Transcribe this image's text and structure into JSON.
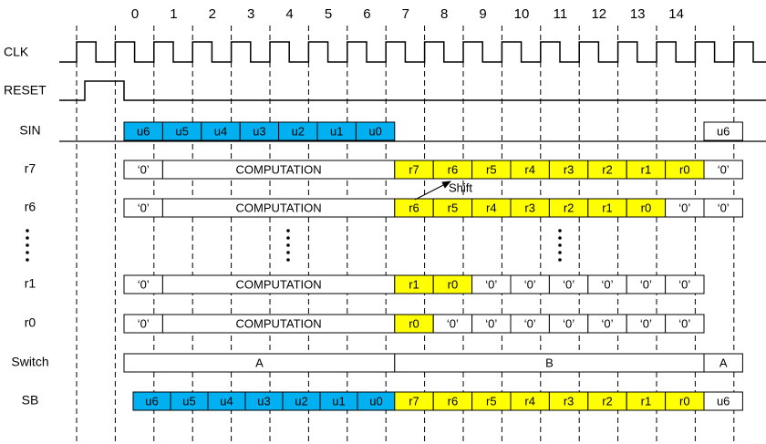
{
  "cycles": [
    "0",
    "1",
    "2",
    "3",
    "4",
    "5",
    "6",
    "7",
    "8",
    "9",
    "10",
    "11",
    "12",
    "13",
    "14"
  ],
  "clock": {
    "label": "CLK"
  },
  "reset": {
    "label": "RESET"
  },
  "rows": [
    {
      "label": "SIN",
      "cells": [
        {
          "text": "u6",
          "color": "#00b0f0"
        },
        {
          "text": "u5",
          "color": "#00b0f0"
        },
        {
          "text": "u4",
          "color": "#00b0f0"
        },
        {
          "text": "u3",
          "color": "#00b0f0"
        },
        {
          "text": "u2",
          "color": "#00b0f0"
        },
        {
          "text": "u1",
          "color": "#00b0f0"
        },
        {
          "text": "u0",
          "color": "#00b0f0"
        },
        {
          "text": "u6",
          "color": "#ffffff"
        }
      ]
    },
    {
      "label": "r7",
      "cells": [
        {
          "text": "‘0’",
          "color": "#ffffff"
        },
        {
          "text": "COMPUTATION",
          "color": "#ffffff"
        },
        {
          "text": "r7",
          "color": "#ffff00"
        },
        {
          "text": "r6",
          "color": "#ffff00"
        },
        {
          "text": "r5",
          "color": "#ffff00"
        },
        {
          "text": "r4",
          "color": "#ffff00"
        },
        {
          "text": "r3",
          "color": "#ffff00"
        },
        {
          "text": "r2",
          "color": "#ffff00"
        },
        {
          "text": "r1",
          "color": "#ffff00"
        },
        {
          "text": "r0",
          "color": "#ffff00"
        },
        {
          "text": "‘0’",
          "color": "#ffffff"
        }
      ]
    },
    {
      "label": "r6",
      "cells": [
        {
          "text": "‘0’",
          "color": "#ffffff"
        },
        {
          "text": "COMPUTATION",
          "color": "#ffffff"
        },
        {
          "text": "r6",
          "color": "#ffff00"
        },
        {
          "text": "r5",
          "color": "#ffff00"
        },
        {
          "text": "r4",
          "color": "#ffff00"
        },
        {
          "text": "r3",
          "color": "#ffff00"
        },
        {
          "text": "r2",
          "color": "#ffff00"
        },
        {
          "text": "r1",
          "color": "#ffff00"
        },
        {
          "text": "r0",
          "color": "#ffff00"
        },
        {
          "text": "‘0’",
          "color": "#ffffff"
        },
        {
          "text": "‘0’",
          "color": "#ffffff"
        }
      ]
    },
    {
      "label": "r1",
      "cells": [
        {
          "text": "‘0’",
          "color": "#ffffff"
        },
        {
          "text": "COMPUTATION",
          "color": "#ffffff"
        },
        {
          "text": "r1",
          "color": "#ffff00"
        },
        {
          "text": "r0",
          "color": "#ffff00"
        },
        {
          "text": "‘0’",
          "color": "#ffffff"
        },
        {
          "text": "‘0’",
          "color": "#ffffff"
        },
        {
          "text": "‘0’",
          "color": "#ffffff"
        },
        {
          "text": "‘0’",
          "color": "#ffffff"
        },
        {
          "text": "‘0’",
          "color": "#ffffff"
        },
        {
          "text": "‘0’",
          "color": "#ffffff"
        }
      ]
    },
    {
      "label": "r0",
      "cells": [
        {
          "text": "‘0’",
          "color": "#ffffff"
        },
        {
          "text": "COMPUTATION",
          "color": "#ffffff"
        },
        {
          "text": "r0",
          "color": "#ffff00"
        },
        {
          "text": "‘0’",
          "color": "#ffffff"
        },
        {
          "text": "‘0’",
          "color": "#ffffff"
        },
        {
          "text": "‘0’",
          "color": "#ffffff"
        },
        {
          "text": "‘0’",
          "color": "#ffffff"
        },
        {
          "text": "‘0’",
          "color": "#ffffff"
        },
        {
          "text": "‘0’",
          "color": "#ffffff"
        },
        {
          "text": "‘0’",
          "color": "#ffffff"
        }
      ]
    },
    {
      "label": "Switch",
      "cells": [
        {
          "text": "A",
          "color": "#ffffff"
        },
        {
          "text": "B",
          "color": "#ffffff"
        },
        {
          "text": "A",
          "color": "#ffffff"
        }
      ]
    },
    {
      "label": "SB",
      "cells": [
        {
          "text": "u6",
          "color": "#00b0f0"
        },
        {
          "text": "u5",
          "color": "#00b0f0"
        },
        {
          "text": "u4",
          "color": "#00b0f0"
        },
        {
          "text": "u3",
          "color": "#00b0f0"
        },
        {
          "text": "u2",
          "color": "#00b0f0"
        },
        {
          "text": "u1",
          "color": "#00b0f0"
        },
        {
          "text": "u0",
          "color": "#00b0f0"
        },
        {
          "text": "r7",
          "color": "#ffff00"
        },
        {
          "text": "r6",
          "color": "#ffff00"
        },
        {
          "text": "r5",
          "color": "#ffff00"
        },
        {
          "text": "r4",
          "color": "#ffff00"
        },
        {
          "text": "r3",
          "color": "#ffff00"
        },
        {
          "text": "r2",
          "color": "#ffff00"
        },
        {
          "text": "r1",
          "color": "#ffff00"
        },
        {
          "text": "r0",
          "color": "#ffff00"
        },
        {
          "text": "u6",
          "color": "#ffffff"
        }
      ]
    }
  ],
  "annotation": "Shift"
}
